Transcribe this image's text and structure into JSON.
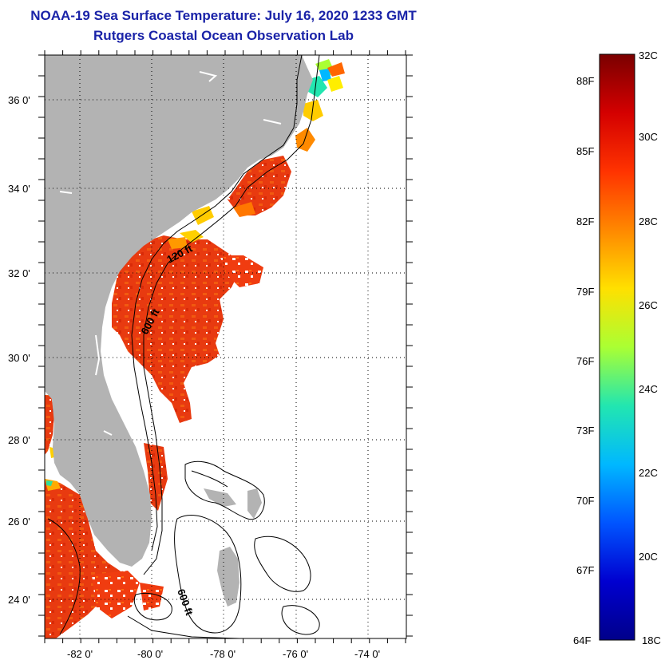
{
  "title": "NOAA-19 Sea Surface Temperature:  July 16, 2020 1233 GMT",
  "subtitle": "Rutgers Coastal Ocean Observation Lab",
  "map": {
    "lat_labels": [
      "36 0'",
      "34 0'",
      "32 0'",
      "30 0'",
      "28 0'",
      "26 0'",
      "24 0'"
    ],
    "lon_labels": [
      "-82 0'",
      "-80 0'",
      "-78 0'",
      "-76 0'",
      "-74 0'"
    ],
    "contour_labels": [
      "120 ft",
      "600 ft",
      "600 ft"
    ],
    "land_color": "#b3b3b3",
    "ocean_no_data_color": "#ffffff"
  },
  "colorbar": {
    "celsius_labels": [
      "32C",
      "30C",
      "28C",
      "26C",
      "24C",
      "22C",
      "20C",
      "18C"
    ],
    "fahrenheit_labels": [
      "88F",
      "85F",
      "82F",
      "79F",
      "76F",
      "73F",
      "70F",
      "67F",
      "64F"
    ],
    "colors": [
      "#7a0000",
      "#d40000",
      "#ff3300",
      "#ff8800",
      "#ffe000",
      "#aaff33",
      "#22e6b0",
      "#00b8ff",
      "#0055ff",
      "#0000d0",
      "#00008a"
    ]
  }
}
